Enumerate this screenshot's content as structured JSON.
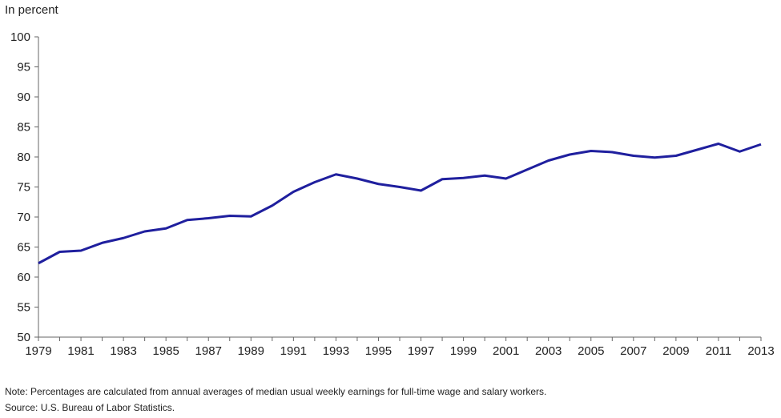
{
  "chart_data": {
    "type": "line",
    "ylabel": "In percent",
    "ylim": [
      50,
      100
    ],
    "yticks": [
      50,
      55,
      60,
      65,
      70,
      75,
      80,
      85,
      90,
      95,
      100
    ],
    "xlim": [
      1979,
      2013
    ],
    "xticks": [
      1979,
      1981,
      1983,
      1985,
      1987,
      1989,
      1991,
      1993,
      1995,
      1997,
      1999,
      2001,
      2003,
      2005,
      2007,
      2009,
      2011,
      2013
    ],
    "grid": false,
    "line_color": "#1f1f9e",
    "x": [
      1979,
      1980,
      1981,
      1982,
      1983,
      1984,
      1985,
      1986,
      1987,
      1988,
      1989,
      1990,
      1991,
      1992,
      1993,
      1994,
      1995,
      1996,
      1997,
      1998,
      1999,
      2000,
      2001,
      2002,
      2003,
      2004,
      2005,
      2006,
      2007,
      2008,
      2009,
      2010,
      2011,
      2012,
      2013
    ],
    "series": [
      {
        "values": [
          62.3,
          64.2,
          64.4,
          65.7,
          66.5,
          67.6,
          68.1,
          69.5,
          69.8,
          70.2,
          70.1,
          71.9,
          74.2,
          75.8,
          77.1,
          76.4,
          75.5,
          75.0,
          74.4,
          76.3,
          76.5,
          76.9,
          76.4,
          77.9,
          79.4,
          80.4,
          81.0,
          80.8,
          80.2,
          79.9,
          80.2,
          81.2,
          82.2,
          80.9,
          82.1
        ]
      }
    ]
  },
  "notes": {
    "note": "Note: Percentages are calculated from annual averages of median usual weekly earnings for full-time wage and salary workers.",
    "source": "Source: U.S. Bureau of Labor Statistics."
  }
}
